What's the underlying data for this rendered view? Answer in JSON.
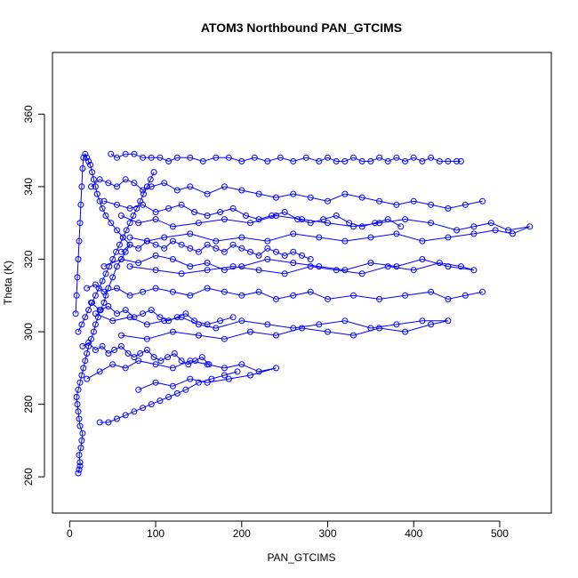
{
  "chart_data": {
    "type": "scatter",
    "title": "ATOM3 Northbound PAN_GTCIMS",
    "xlabel": "PAN_GTCIMS",
    "ylabel": "Theta (K)",
    "xlim": [
      -20,
      560
    ],
    "ylim": [
      250,
      377
    ],
    "x_ticks": [
      0,
      100,
      200,
      300,
      400,
      500
    ],
    "y_ticks": [
      260,
      280,
      300,
      320,
      340,
      360
    ],
    "x_tick_labels": [
      "0",
      "100",
      "200",
      "300",
      "400",
      "500"
    ],
    "y_tick_labels": [
      "260",
      "280",
      "300",
      "320",
      "340",
      "360"
    ],
    "marker": "open-circle",
    "connect_points": true,
    "color": "#0000ff",
    "series": [
      {
        "x": [
          10,
          11,
          12,
          12,
          11,
          13,
          14,
          15,
          12,
          11,
          10,
          9,
          8,
          10,
          12,
          14,
          16,
          18,
          20,
          22,
          25,
          28,
          30,
          33,
          36,
          40,
          42,
          45,
          50,
          55,
          60,
          65,
          70,
          62,
          55,
          48,
          42,
          38,
          35,
          32,
          30,
          28,
          26,
          24,
          22,
          20,
          18,
          16,
          15,
          14,
          13,
          12,
          11,
          10,
          9,
          8,
          7
        ],
        "y": [
          261,
          262,
          263,
          264,
          266,
          268,
          270,
          272,
          274,
          276,
          278,
          280,
          282,
          284,
          286,
          288,
          290,
          292,
          294,
          296,
          298,
          300,
          302,
          304,
          306,
          308,
          310,
          312,
          315,
          318,
          320,
          322,
          324,
          326,
          328,
          330,
          332,
          334,
          336,
          338,
          340,
          342,
          344,
          346,
          347,
          348,
          349,
          348,
          345,
          340,
          335,
          330,
          325,
          320,
          315,
          310,
          305
        ]
      },
      {
        "x": [
          48,
          55,
          65,
          75,
          85,
          95,
          105,
          115,
          125,
          140,
          155,
          170,
          185,
          200,
          215,
          230,
          245,
          260,
          275,
          290,
          300,
          310,
          320,
          330,
          340,
          350,
          360,
          370,
          380,
          390,
          400,
          410,
          420,
          430,
          440,
          450,
          455
        ],
        "y": [
          349,
          348,
          349,
          349,
          348,
          348,
          348,
          347,
          348,
          348,
          347,
          348,
          348,
          347,
          348,
          347,
          348,
          347,
          348,
          347,
          348,
          347,
          347,
          348,
          347,
          347,
          348,
          347,
          348,
          347,
          348,
          347,
          348,
          347,
          347,
          347,
          347
        ]
      },
      {
        "x": [
          60,
          80,
          100,
          120,
          150,
          180,
          210,
          240,
          270,
          300,
          330,
          360,
          390,
          420,
          450,
          470,
          490,
          510,
          535,
          515,
          495,
          470,
          440,
          410,
          380,
          350,
          320,
          290,
          260,
          230,
          200,
          170,
          140,
          110,
          90,
          70
        ],
        "y": [
          332,
          330,
          331,
          329,
          330,
          331,
          330,
          332,
          331,
          330,
          329,
          330,
          331,
          330,
          328,
          329,
          330,
          328,
          329,
          327,
          328,
          327,
          326,
          325,
          327,
          326,
          325,
          326,
          327,
          325,
          326,
          325,
          327,
          326,
          325,
          326
        ]
      },
      {
        "x": [
          40,
          60,
          80,
          100,
          120,
          140,
          160,
          180,
          200,
          230,
          260,
          290,
          320,
          350,
          380,
          410,
          440,
          470,
          455,
          430,
          400,
          370,
          340,
          310,
          280,
          250,
          220,
          190,
          160,
          130,
          100,
          70
        ],
        "y": [
          318,
          320,
          319,
          321,
          320,
          318,
          319,
          317,
          318,
          320,
          319,
          318,
          317,
          319,
          318,
          320,
          318,
          317,
          318,
          319,
          317,
          318,
          316,
          317,
          318,
          316,
          317,
          318,
          317,
          316,
          317,
          318
        ]
      },
      {
        "x": [
          30,
          50,
          70,
          90,
          110,
          130,
          150,
          170,
          200,
          230,
          260,
          290,
          320,
          350,
          380,
          410,
          440,
          420,
          390,
          360,
          330,
          300,
          270,
          240,
          210,
          180,
          150,
          120,
          90,
          60
        ],
        "y": [
          305,
          303,
          304,
          302,
          303,
          304,
          302,
          301,
          303,
          302,
          301,
          302,
          303,
          301,
          302,
          303,
          303,
          302,
          300,
          301,
          299,
          300,
          301,
          299,
          300,
          298,
          299,
          300,
          298,
          299
        ]
      },
      {
        "x": [
          20,
          35,
          50,
          65,
          80,
          100,
          120,
          140,
          160,
          180,
          200,
          220,
          240,
          210,
          185,
          160,
          140,
          120,
          100,
          80
        ],
        "y": [
          287,
          289,
          291,
          290,
          292,
          291,
          290,
          292,
          291,
          290,
          291,
          289,
          290,
          288,
          287,
          286,
          287,
          285,
          286,
          284
        ]
      },
      {
        "x": [
          35,
          45,
          55,
          65,
          75,
          85,
          95,
          105,
          115,
          125,
          135,
          150,
          165,
          180,
          195
        ],
        "y": [
          275,
          275,
          276,
          277,
          278,
          279,
          280,
          281,
          282,
          283,
          284,
          286,
          287,
          288,
          289
        ]
      },
      {
        "x": [
          25,
          35,
          45,
          55,
          65,
          75,
          85,
          95,
          110,
          125,
          140,
          160,
          180,
          200,
          220,
          240,
          260,
          280,
          300,
          320,
          340,
          360,
          380,
          400,
          420,
          440,
          460,
          480
        ],
        "y": [
          340,
          342,
          341,
          340,
          342,
          341,
          339,
          340,
          341,
          339,
          340,
          338,
          340,
          339,
          338,
          337,
          338,
          337,
          336,
          338,
          337,
          336,
          335,
          336,
          335,
          334,
          335,
          336
        ]
      },
      {
        "x": [
          20,
          30,
          40,
          55,
          70,
          85,
          100,
          120,
          140,
          160,
          180,
          200,
          220,
          240,
          260,
          280,
          300,
          330,
          360,
          390,
          420,
          440,
          460,
          480
        ],
        "y": [
          312,
          313,
          311,
          312,
          310,
          311,
          312,
          311,
          310,
          312,
          311,
          310,
          311,
          309,
          310,
          311,
          309,
          310,
          309,
          310,
          311,
          309,
          310,
          311
        ]
      },
      {
        "x": [
          15,
          22,
          30,
          38,
          45,
          52,
          60,
          68,
          75,
          82,
          90,
          98,
          106,
          114,
          122,
          130,
          138,
          146,
          154,
          162
        ],
        "y": [
          296,
          297,
          295,
          296,
          294,
          295,
          296,
          294,
          293,
          294,
          295,
          293,
          292,
          293,
          294,
          292,
          291,
          292,
          293,
          291
        ]
      },
      {
        "x": [
          60,
          70,
          80,
          90,
          100,
          110,
          120,
          130,
          140,
          150,
          160,
          170,
          180,
          190,
          200,
          210,
          220,
          230,
          240,
          250,
          260,
          270,
          280
        ],
        "y": [
          322,
          324,
          323,
          325,
          324,
          323,
          325,
          324,
          323,
          322,
          324,
          323,
          322,
          324,
          323,
          322,
          321,
          323,
          322,
          321,
          322,
          321,
          320
        ]
      },
      {
        "x": [
          40,
          55,
          70,
          85,
          100,
          115,
          130,
          145,
          160,
          175,
          190,
          205,
          220,
          235,
          250,
          265,
          280,
          295,
          310,
          325,
          340,
          355,
          370,
          385
        ],
        "y": [
          336,
          335,
          334,
          335,
          333,
          334,
          335,
          333,
          332,
          333,
          334,
          332,
          331,
          332,
          333,
          331,
          330,
          331,
          332,
          330,
          329,
          330,
          331,
          329
        ]
      },
      {
        "x": [
          25,
          35,
          45,
          55,
          65,
          75,
          85,
          95,
          105,
          115,
          125,
          135,
          145,
          160,
          175,
          190
        ],
        "y": [
          308,
          306,
          307,
          305,
          306,
          304,
          305,
          306,
          304,
          303,
          304,
          305,
          303,
          302,
          303,
          304
        ]
      },
      {
        "x": [
          10,
          14,
          18,
          22,
          26,
          30,
          34,
          38,
          42,
          46,
          50,
          54,
          58,
          62,
          66,
          70,
          74,
          78,
          82,
          86,
          90,
          94,
          98
        ],
        "y": [
          300,
          302,
          304,
          306,
          308,
          310,
          312,
          314,
          316,
          318,
          320,
          322,
          324,
          326,
          328,
          330,
          332,
          334,
          336,
          338,
          340,
          342,
          344
        ]
      }
    ]
  }
}
